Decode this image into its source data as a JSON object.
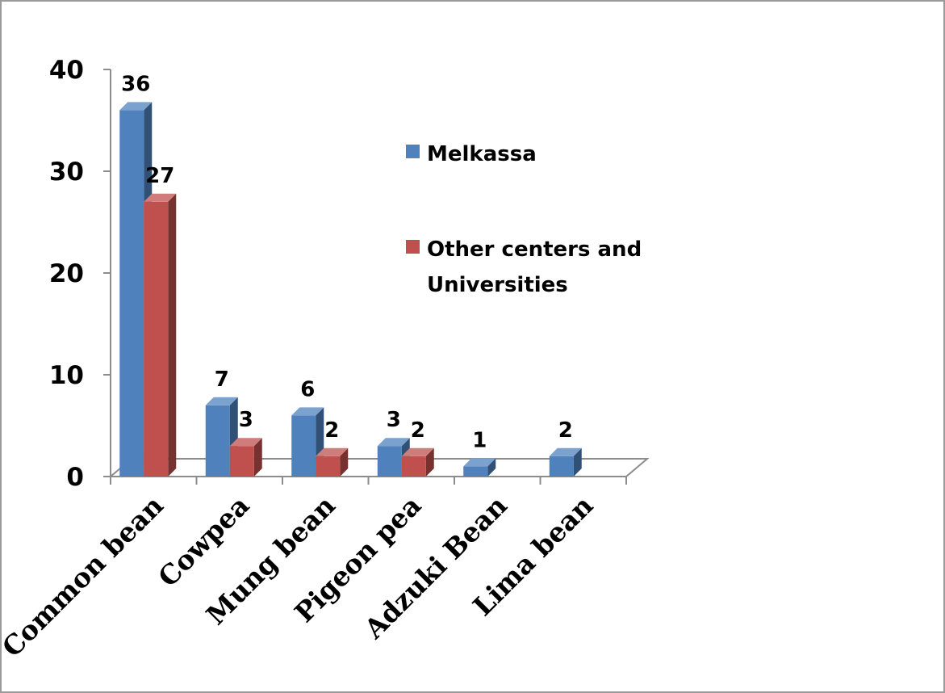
{
  "chart_data": {
    "type": "bar",
    "title": "",
    "xlabel": "",
    "ylabel": "",
    "ylim": [
      0,
      40
    ],
    "yticks": [
      "0",
      "10",
      "20",
      "30",
      "40"
    ],
    "categories": [
      "Common bean",
      "Cowpea",
      "Mung bean",
      "Pigeon pea",
      "Adzuki Bean",
      "Lima bean"
    ],
    "series": [
      {
        "name": "Melkassa",
        "color": "#4f81bd",
        "values": [
          36,
          7,
          6,
          3,
          1,
          2
        ],
        "labels": [
          "36",
          "7",
          "6",
          "3",
          "1",
          "2"
        ]
      },
      {
        "name": "Other centers and Universities",
        "color": "#c0504d",
        "values": [
          27,
          3,
          2,
          2,
          null,
          null
        ],
        "labels": [
          "27",
          "3",
          "2",
          "2",
          "",
          ""
        ]
      }
    ],
    "legend_lines": [
      [
        "Melkassa"
      ],
      [
        "Other centers and",
        "Universities"
      ]
    ],
    "legend_position": "right",
    "grid": false,
    "style": "3d-clustered-column"
  }
}
